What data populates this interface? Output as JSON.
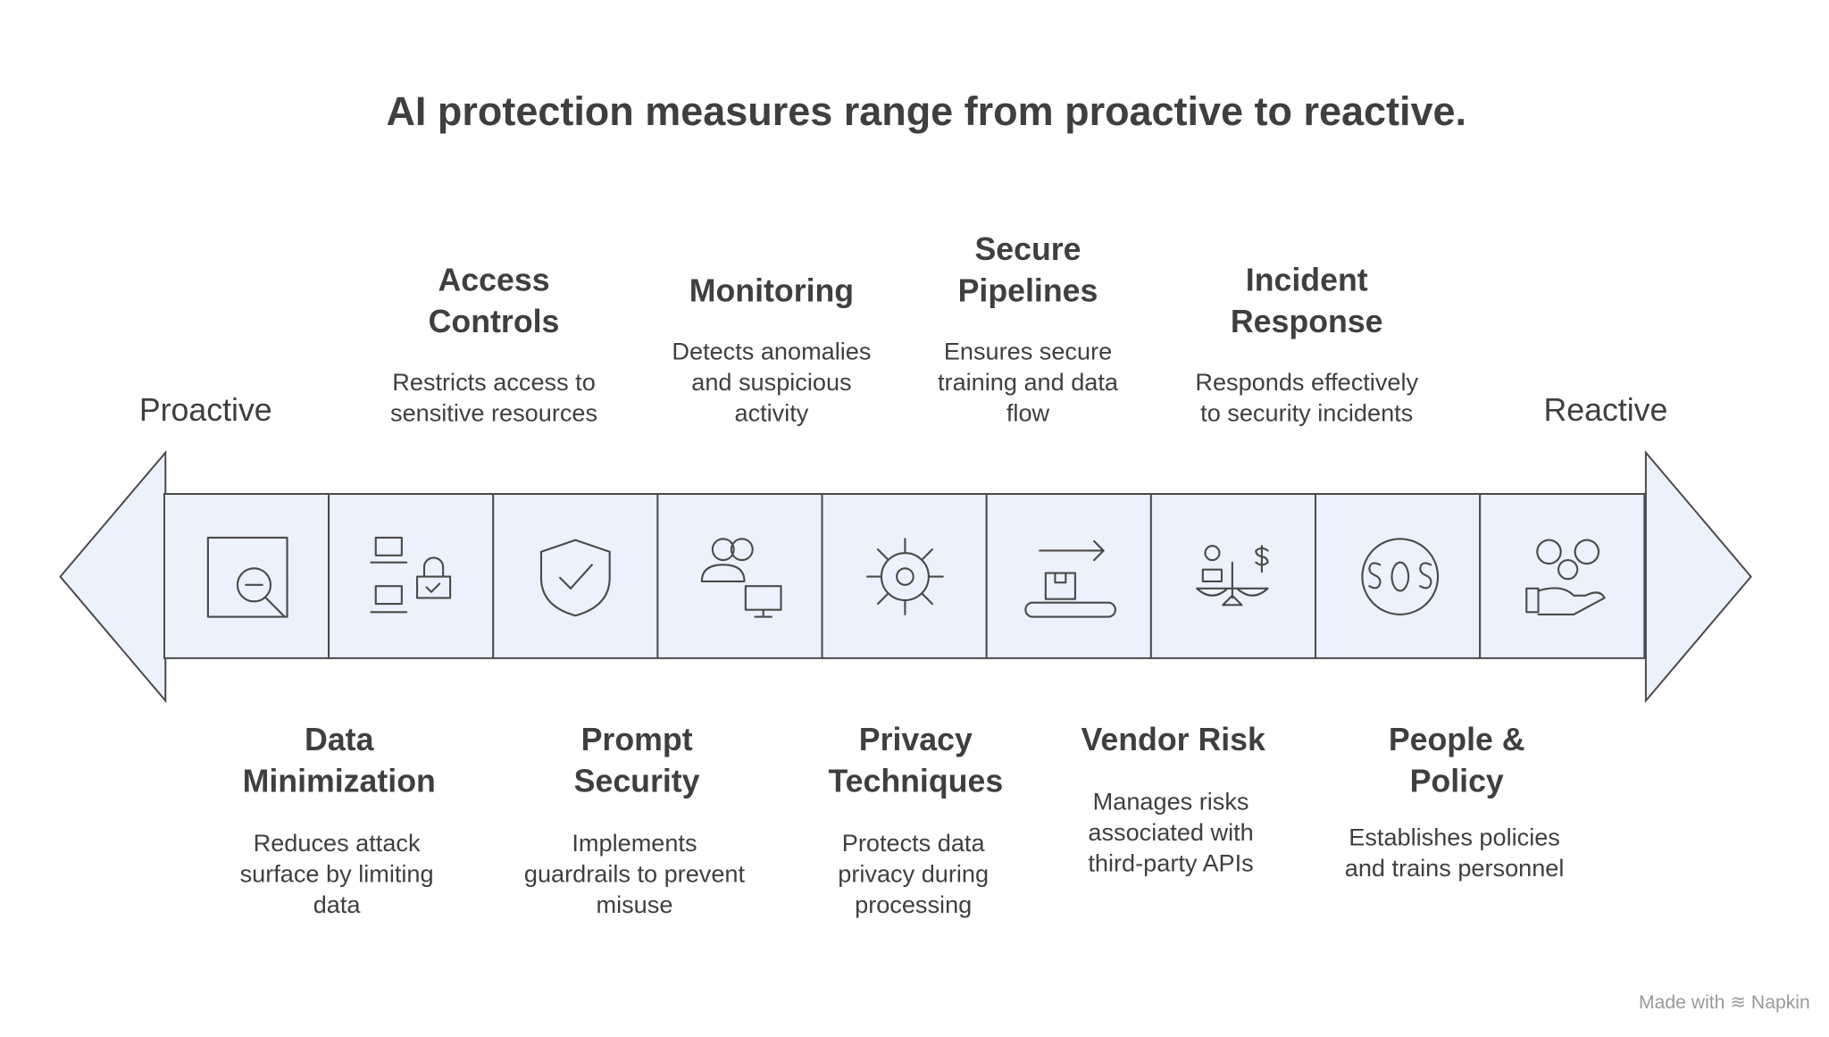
{
  "title": "AI protection measures range from proactive to reactive.",
  "start_label": "Proactive",
  "end_label": "Reactive",
  "items": [
    {
      "title_lines": [
        "Data",
        "Minimization"
      ],
      "description_lines": [
        "Reduces attack",
        "surface by limiting",
        "data"
      ]
    },
    {
      "title_lines": [
        "Access",
        "Controls"
      ],
      "description_lines": [
        "Restricts access to",
        "sensitive resources"
      ]
    },
    {
      "title_lines": [
        "Prompt",
        "Security"
      ],
      "description_lines": [
        "Implements",
        "guardrails to prevent",
        "misuse"
      ]
    },
    {
      "title_lines": [
        "Monitoring"
      ],
      "description_lines": [
        "Detects anomalies",
        "and suspicious",
        "activity"
      ]
    },
    {
      "title_lines": [
        "Privacy",
        "Techniques"
      ],
      "description_lines": [
        "Protects data",
        "privacy during",
        "processing"
      ]
    },
    {
      "title_lines": [
        "Secure",
        "Pipelines"
      ],
      "description_lines": [
        "Ensures secure",
        "training and data",
        "flow"
      ]
    },
    {
      "title_lines": [
        "Vendor Risk"
      ],
      "description_lines": [
        "Manages risks",
        "associated with",
        "third-party APIs"
      ]
    },
    {
      "title_lines": [
        "Incident",
        "Response"
      ],
      "description_lines": [
        "Responds effectively",
        "to security incidents"
      ]
    },
    {
      "title_lines": [
        "People &",
        "Policy"
      ],
      "description_lines": [
        "Establishes policies",
        "and trains personnel"
      ]
    }
  ],
  "footer": "Made with ≋ Napkin"
}
